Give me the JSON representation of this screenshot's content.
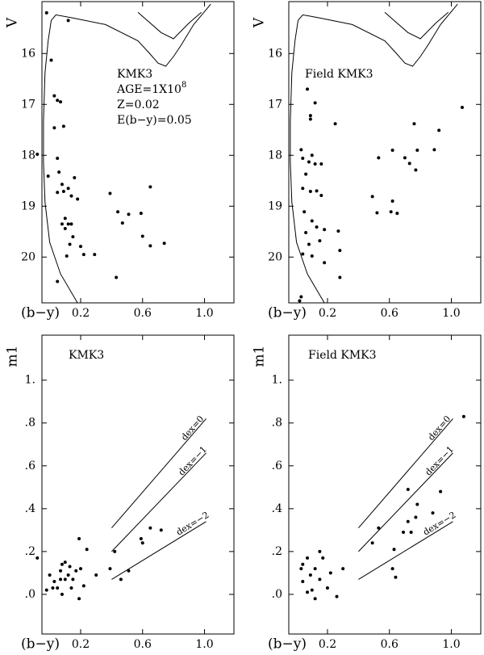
{
  "chart_data": [
    {
      "type": "scatter",
      "x_label": "(b−y)",
      "y_label": "V",
      "annotations": [
        {
          "text": "KMK3"
        },
        {
          "text": "AGE=1X10",
          "sup": "8"
        },
        {
          "text": "Z=0.02"
        },
        {
          "text": "E(b−y)=0.05"
        }
      ],
      "xlim": [
        -0.05,
        1.19
      ],
      "ylim": [
        20.9,
        14.98
      ],
      "xticks": [
        0.2,
        0.6,
        {
          "value": 1,
          "label": "1.0"
        }
      ],
      "yticks": [
        16,
        17,
        18,
        19,
        20
      ],
      "x": [
        -0.02,
        0.12,
        0.01,
        0.03,
        0.05,
        0.07,
        0.09,
        0.03,
        -0.08,
        0.05,
        -0.01,
        0.06,
        0.08,
        0.16,
        0.05,
        0.09,
        0.12,
        0.14,
        0.18,
        0.39,
        0.65,
        0.1,
        0.12,
        0.08,
        0.14,
        0.44,
        0.51,
        0.59,
        0.47,
        0.1,
        0.15,
        0.6,
        0.13,
        0.2,
        0.65,
        0.74,
        0.22,
        0.11,
        0.29,
        0.05,
        0.43
      ],
      "y": [
        15.2,
        15.35,
        16.13,
        16.83,
        16.92,
        16.95,
        17.43,
        17.46,
        17.98,
        18.06,
        18.41,
        18.33,
        18.57,
        18.44,
        18.73,
        18.71,
        18.65,
        18.8,
        18.86,
        18.75,
        18.62,
        19.24,
        19.35,
        19.35,
        19.35,
        19.11,
        19.16,
        19.14,
        19.33,
        19.44,
        19.6,
        19.59,
        19.75,
        19.79,
        19.78,
        19.73,
        19.95,
        19.98,
        19.95,
        20.48,
        20.4
      ],
      "lines": [
        {
          "x": [
            0.18,
            0.07,
            0.0,
            -0.03,
            -0.04,
            -0.04,
            -0.03,
            -0.01,
            0.01,
            0.04,
            0.15,
            0.36,
            0.57,
            0.64,
            0.7,
            0.75,
            0.8,
            0.85,
            0.93,
            1.04
          ],
          "y": [
            20.9,
            20.33,
            19.71,
            18.92,
            18.13,
            17.33,
            16.38,
            15.75,
            15.35,
            15.24,
            15.3,
            15.43,
            15.75,
            15.98,
            16.19,
            16.25,
            16.06,
            15.83,
            15.43,
            15.03
          ]
        },
        {
          "x": [
            0.57,
            0.72,
            0.8,
            0.9,
            0.98
          ],
          "y": [
            15.19,
            15.59,
            15.71,
            15.4,
            15.19
          ]
        }
      ]
    },
    {
      "type": "scatter",
      "x_label": "(b−y)",
      "y_label": "V",
      "annotations": [
        {
          "text": "Field KMK3"
        }
      ],
      "xlim": [
        -0.05,
        1.19
      ],
      "ylim": [
        20.9,
        14.98
      ],
      "xticks": [
        0.2,
        0.6,
        {
          "value": 1,
          "label": "1.0"
        }
      ],
      "yticks": [
        16,
        17,
        18,
        19,
        20
      ],
      "x": [
        0.07,
        0.12,
        0.09,
        0.09,
        0.03,
        0.1,
        0.25,
        0.76,
        1.07,
        0.92,
        0.04,
        0.08,
        0.12,
        0.16,
        0.53,
        0.62,
        0.7,
        0.73,
        0.78,
        0.89,
        0.77,
        0.06,
        0.04,
        0.09,
        0.13,
        0.16,
        0.49,
        0.62,
        0.52,
        0.61,
        0.65,
        0.05,
        0.1,
        0.13,
        0.18,
        0.06,
        0.27,
        0.15,
        0.08,
        0.28,
        0.04,
        0.1,
        0.18,
        0.28,
        0.03,
        0.02
      ],
      "y": [
        16.7,
        16.97,
        17.22,
        17.29,
        17.89,
        18.0,
        17.38,
        17.38,
        17.06,
        17.51,
        18.06,
        18.13,
        18.17,
        18.17,
        18.05,
        17.9,
        18.05,
        18.16,
        17.9,
        17.89,
        18.29,
        18.37,
        18.65,
        18.71,
        18.7,
        18.79,
        18.81,
        18.9,
        19.13,
        19.11,
        19.14,
        19.11,
        19.29,
        19.41,
        19.46,
        19.52,
        19.49,
        19.68,
        19.75,
        19.87,
        19.94,
        19.98,
        20.11,
        20.4,
        20.78,
        20.86
      ],
      "lines": [
        {
          "x": [
            0.18,
            0.07,
            0.0,
            -0.03,
            -0.04,
            -0.04,
            -0.03,
            -0.01,
            0.01,
            0.04,
            0.15,
            0.36,
            0.57,
            0.64,
            0.7,
            0.75,
            0.8,
            0.85,
            0.93,
            1.04
          ],
          "y": [
            20.9,
            20.33,
            19.71,
            18.92,
            18.13,
            17.33,
            16.38,
            15.75,
            15.35,
            15.24,
            15.3,
            15.43,
            15.75,
            15.98,
            16.19,
            16.25,
            16.06,
            15.83,
            15.43,
            15.03
          ]
        },
        {
          "x": [
            0.57,
            0.72,
            0.8,
            0.9,
            0.98
          ],
          "y": [
            15.19,
            15.59,
            15.71,
            15.4,
            15.19
          ]
        }
      ]
    },
    {
      "type": "scatter",
      "x_label": "(b−y)",
      "y_label": "m1",
      "annotations": [
        {
          "text": "KMK3"
        }
      ],
      "xlim": [
        -0.05,
        1.19
      ],
      "ylim": [
        -0.185,
        1.21
      ],
      "xticks": [
        0.2,
        0.6,
        {
          "value": 1,
          "label": "1.0"
        }
      ],
      "yticks": [
        {
          "value": 0,
          "label": ".0"
        },
        {
          "value": 0.2,
          "label": ".2"
        },
        {
          "value": 0.4,
          "label": ".4"
        },
        {
          "value": 0.6,
          "label": ".6"
        },
        {
          "value": 0.8,
          "label": ".8"
        },
        {
          "value": 1,
          "label": "1."
        }
      ],
      "x": [
        -0.08,
        0.0,
        -0.02,
        0.02,
        0.05,
        0.07,
        0.07,
        0.08,
        0.1,
        0.12,
        0.13,
        0.15,
        0.17,
        0.14,
        0.19,
        0.22,
        0.1,
        0.2,
        0.19,
        0.24,
        0.3,
        0.39,
        0.42,
        0.46,
        0.51,
        0.59,
        0.6,
        0.65,
        0.72,
        0.03,
        0.08
      ],
      "y": [
        0.17,
        0.09,
        0.02,
        0.03,
        0.03,
        0.07,
        0.11,
        0.14,
        0.15,
        0.09,
        0.13,
        0.07,
        0.11,
        0.03,
        -0.02,
        0.04,
        0.07,
        0.12,
        0.26,
        0.21,
        0.09,
        0.12,
        0.2,
        0.07,
        0.11,
        0.26,
        0.24,
        0.31,
        0.3,
        0.06,
        0.0
      ],
      "lines": [
        {
          "label": "dex=0",
          "x": [
            0.4,
            1.01
          ],
          "y": [
            0.31,
            0.82
          ]
        },
        {
          "label": "dex=−1",
          "x": [
            0.4,
            1.01
          ],
          "y": [
            0.2,
            0.66
          ]
        },
        {
          "label": "dex=−2",
          "x": [
            0.4,
            1.01
          ],
          "y": [
            0.07,
            0.34
          ]
        }
      ]
    },
    {
      "type": "scatter",
      "x_label": "(b−y)",
      "y_label": "m1",
      "annotations": [
        {
          "text": "Field KMK3"
        }
      ],
      "xlim": [
        -0.05,
        1.19
      ],
      "ylim": [
        -0.185,
        1.21
      ],
      "xticks": [
        0.2,
        0.6,
        {
          "value": 1,
          "label": "1.0"
        }
      ],
      "yticks": [
        {
          "value": 0,
          "label": ".0"
        },
        {
          "value": 0.2,
          "label": ".2"
        },
        {
          "value": 0.4,
          "label": ".4"
        },
        {
          "value": 0.6,
          "label": ".6"
        },
        {
          "value": 0.8,
          "label": ".8"
        },
        {
          "value": 1,
          "label": "1."
        }
      ],
      "x": [
        0.03,
        0.04,
        0.07,
        0.09,
        0.1,
        0.12,
        0.15,
        0.17,
        0.2,
        0.22,
        0.26,
        0.3,
        0.07,
        0.12,
        0.15,
        0.49,
        0.53,
        0.63,
        0.62,
        0.64,
        0.69,
        0.72,
        0.77,
        0.78,
        0.74,
        0.72,
        0.88,
        0.93,
        1.08,
        0.04
      ],
      "y": [
        0.12,
        0.06,
        0.17,
        0.09,
        0.02,
        0.12,
        0.07,
        0.17,
        0.03,
        0.1,
        -0.01,
        0.12,
        0.01,
        -0.02,
        0.2,
        0.24,
        0.31,
        0.21,
        0.12,
        0.08,
        0.29,
        0.34,
        0.36,
        0.42,
        0.29,
        0.49,
        0.38,
        0.48,
        0.83,
        0.14
      ],
      "lines": [
        {
          "label": "dex=0",
          "x": [
            0.4,
            1.01
          ],
          "y": [
            0.31,
            0.82
          ]
        },
        {
          "label": "dex=−1",
          "x": [
            0.4,
            1.01
          ],
          "y": [
            0.2,
            0.66
          ]
        },
        {
          "label": "dex=−2",
          "x": [
            0.4,
            1.01
          ],
          "y": [
            0.07,
            0.34
          ]
        }
      ]
    }
  ]
}
